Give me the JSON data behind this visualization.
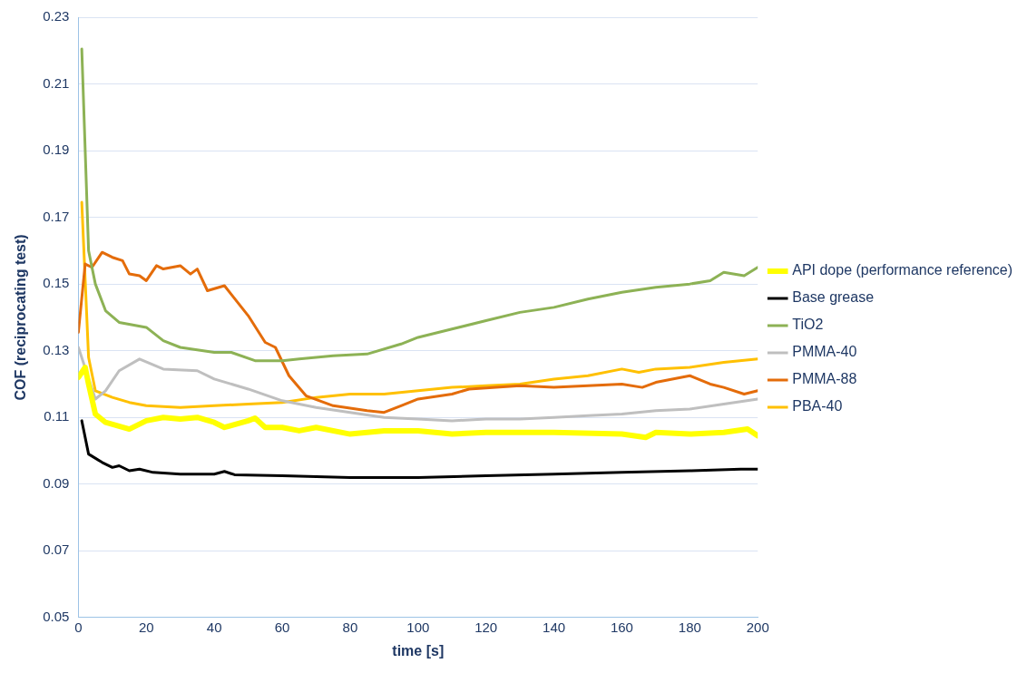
{
  "chart_data": {
    "type": "line",
    "xlabel": "time [s]",
    "ylabel": "COF (reciprocating test)",
    "xlim": [
      0,
      200
    ],
    "xticks": [
      0,
      20,
      40,
      60,
      80,
      100,
      120,
      140,
      160,
      180,
      200
    ],
    "ylim": [
      0.05,
      0.23
    ],
    "yticks": [
      0.05,
      0.07,
      0.09,
      0.11,
      0.13,
      0.15,
      0.17,
      0.19,
      0.21,
      0.23
    ],
    "grid": "y",
    "legend": "right",
    "marker": "none",
    "line_style": "solid",
    "series": [
      {
        "name": "API dope (performance reference)",
        "color": "#ffff00",
        "x": [
          0,
          2,
          3,
          5,
          8,
          15,
          20,
          25,
          30,
          35,
          40,
          43,
          50,
          52,
          55,
          60,
          65,
          70,
          80,
          90,
          100,
          110,
          120,
          140,
          160,
          167,
          170,
          180,
          190,
          197,
          200
        ],
        "values": [
          0.122,
          0.125,
          0.12,
          0.111,
          0.1085,
          0.1065,
          0.109,
          0.11,
          0.1095,
          0.11,
          0.1085,
          0.107,
          0.109,
          0.1098,
          0.107,
          0.107,
          0.106,
          0.107,
          0.105,
          0.106,
          0.106,
          0.105,
          0.1055,
          0.1055,
          0.105,
          0.104,
          0.1055,
          0.105,
          0.1055,
          0.1065,
          0.1045
        ]
      },
      {
        "name": "Base grease",
        "color": "#000000",
        "x": [
          1,
          3,
          7,
          10,
          12,
          15,
          18,
          22,
          30,
          40,
          43,
          46,
          60,
          80,
          100,
          120,
          140,
          160,
          180,
          195,
          200
        ],
        "values": [
          0.109,
          0.099,
          0.0965,
          0.095,
          0.0955,
          0.094,
          0.0945,
          0.0935,
          0.093,
          0.093,
          0.0938,
          0.0928,
          0.0925,
          0.092,
          0.092,
          0.0925,
          0.093,
          0.0935,
          0.094,
          0.0945,
          0.0945
        ]
      },
      {
        "name": "TiO2",
        "color": "#8db255",
        "x": [
          1,
          3,
          5,
          8,
          12,
          20,
          25,
          30,
          40,
          45,
          52,
          60,
          65,
          75,
          85,
          95,
          100,
          110,
          120,
          130,
          140,
          150,
          160,
          170,
          180,
          186,
          190,
          196,
          200
        ],
        "values": [
          0.2205,
          0.16,
          0.15,
          0.142,
          0.1385,
          0.137,
          0.133,
          0.131,
          0.1295,
          0.1295,
          0.127,
          0.127,
          0.1275,
          0.1285,
          0.129,
          0.132,
          0.134,
          0.1365,
          0.139,
          0.1415,
          0.143,
          0.1455,
          0.1475,
          0.149,
          0.15,
          0.151,
          0.1535,
          0.1525,
          0.155
        ]
      },
      {
        "name": "PMMA-40",
        "color": "#bfbfbf",
        "x": [
          0,
          3,
          5,
          8,
          12,
          18,
          25,
          35,
          40,
          50,
          60,
          70,
          80,
          90,
          100,
          110,
          120,
          130,
          140,
          150,
          160,
          170,
          180,
          190,
          200
        ],
        "values": [
          0.131,
          null,
          0.1155,
          0.118,
          0.124,
          0.1275,
          0.1245,
          0.124,
          0.1215,
          0.1185,
          0.115,
          0.113,
          0.1115,
          0.11,
          0.1095,
          0.109,
          0.1095,
          0.1095,
          0.11,
          0.1105,
          0.111,
          0.112,
          0.1125,
          0.114,
          0.1155
        ]
      },
      {
        "name": "PMMA-88",
        "color": "#e46c0a",
        "x": [
          0,
          2,
          4,
          7,
          10,
          13,
          15,
          18,
          20,
          23,
          25,
          30,
          33,
          35,
          38,
          43,
          50,
          55,
          58,
          62,
          67,
          75,
          85,
          90,
          95,
          100,
          110,
          115,
          130,
          140,
          150,
          160,
          166,
          170,
          180,
          186,
          190,
          196,
          200
        ],
        "values": [
          0.1355,
          0.156,
          0.155,
          0.1595,
          0.158,
          0.157,
          0.153,
          0.1525,
          0.151,
          0.1555,
          0.1545,
          0.1555,
          0.153,
          0.1545,
          0.148,
          0.1495,
          0.1405,
          0.1325,
          0.131,
          0.1225,
          0.1165,
          0.1135,
          0.112,
          0.1115,
          0.1135,
          0.1155,
          0.117,
          0.1185,
          0.1195,
          0.119,
          0.1195,
          0.12,
          0.119,
          0.1205,
          0.1225,
          0.12,
          0.119,
          0.117,
          0.118
        ]
      },
      {
        "name": "PBA-40",
        "color": "#ffc000",
        "x": [
          1,
          3,
          5,
          10,
          15,
          20,
          30,
          40,
          50,
          60,
          70,
          80,
          90,
          100,
          110,
          120,
          130,
          140,
          150,
          160,
          165,
          170,
          180,
          190,
          200
        ],
        "values": [
          0.1745,
          0.128,
          0.118,
          0.116,
          0.1145,
          0.1135,
          0.113,
          0.1135,
          0.114,
          0.1145,
          0.116,
          0.117,
          0.117,
          0.118,
          0.119,
          0.1195,
          0.12,
          0.1215,
          0.1225,
          0.1245,
          0.1235,
          0.1245,
          0.125,
          0.1265,
          0.1275
        ]
      }
    ]
  }
}
